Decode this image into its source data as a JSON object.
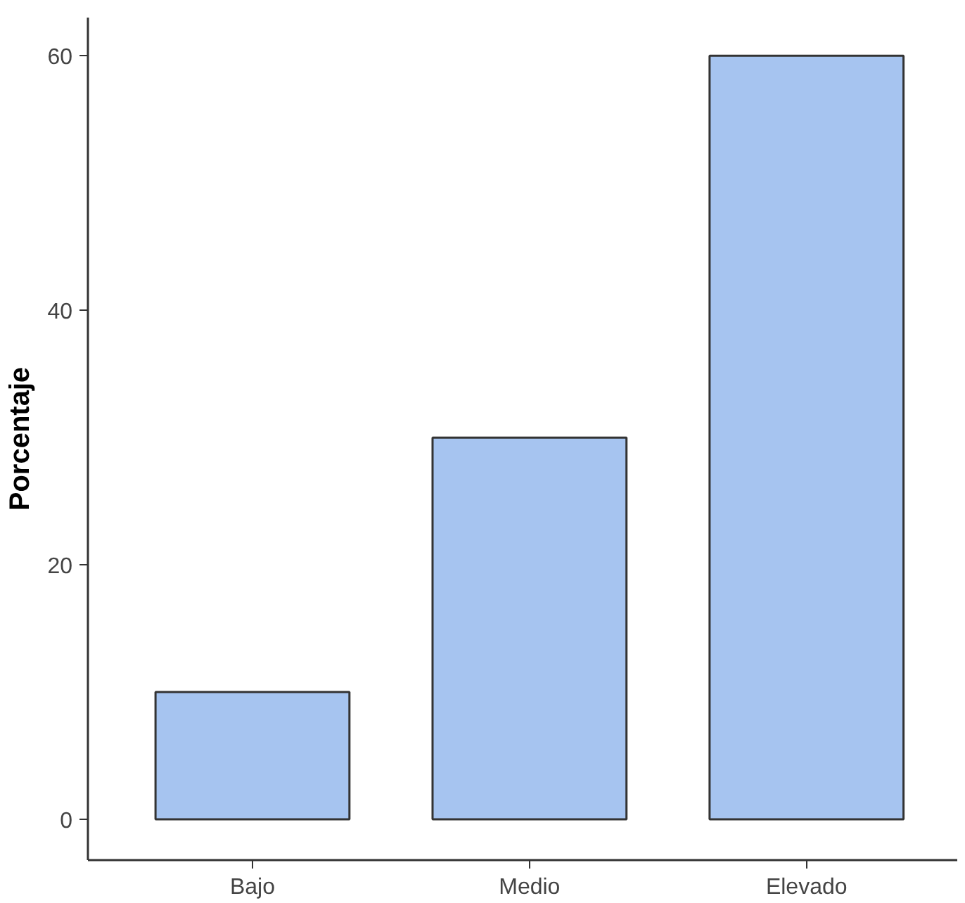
{
  "chart_data": {
    "type": "bar",
    "ylabel": "Porcentaje",
    "categories": [
      "Bajo",
      "Medio",
      "Elevado"
    ],
    "values": [
      10,
      30,
      60
    ],
    "color": "#a6c4f0",
    "ylim": [
      -3.2,
      63
    ],
    "yticks": [
      0,
      20,
      40,
      60
    ]
  }
}
